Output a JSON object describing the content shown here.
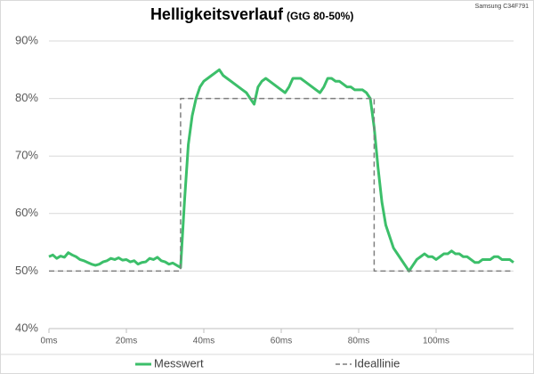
{
  "chart_data": {
    "type": "line",
    "title": "Helligkeitsverlauf",
    "subtitle": "(GtG 80-50%)",
    "annotation": "Samsung C34F791",
    "xlim": [
      0,
      120
    ],
    "ylim": [
      40,
      90
    ],
    "xticks": [
      {
        "value": 0,
        "label": "0ms"
      },
      {
        "value": 20,
        "label": "20ms"
      },
      {
        "value": 40,
        "label": "40ms"
      },
      {
        "value": 60,
        "label": "60ms"
      },
      {
        "value": 80,
        "label": "80ms"
      },
      {
        "value": 100,
        "label": "100ms"
      }
    ],
    "yticks": [
      {
        "value": 40,
        "label": "40%"
      },
      {
        "value": 50,
        "label": "50%"
      },
      {
        "value": 60,
        "label": "60%"
      },
      {
        "value": 70,
        "label": "70%"
      },
      {
        "value": 80,
        "label": "80%"
      },
      {
        "value": 90,
        "label": "90%"
      }
    ],
    "grid": true,
    "legend": "bottom",
    "series": [
      {
        "name": "Messwert",
        "color": "#3cbf6a",
        "dash": false,
        "x": [
          0,
          1,
          2,
          3,
          4,
          5,
          6,
          7,
          8,
          9,
          10,
          11,
          12,
          13,
          14,
          15,
          16,
          17,
          18,
          19,
          20,
          21,
          22,
          23,
          24,
          25,
          26,
          27,
          28,
          29,
          30,
          31,
          32,
          33,
          34,
          35,
          36,
          37,
          38,
          39,
          40,
          41,
          42,
          43,
          44,
          45,
          46,
          47,
          48,
          49,
          50,
          51,
          52,
          53,
          54,
          55,
          56,
          57,
          58,
          59,
          60,
          61,
          62,
          63,
          64,
          65,
          66,
          67,
          68,
          69,
          70,
          71,
          72,
          73,
          74,
          75,
          76,
          77,
          78,
          79,
          80,
          81,
          82,
          83,
          84,
          85,
          86,
          87,
          88,
          89,
          90,
          91,
          92,
          93,
          94,
          95,
          96,
          97,
          98,
          99,
          100,
          101,
          102,
          103,
          104,
          105,
          106,
          107,
          108,
          109,
          110,
          111,
          112,
          113,
          114,
          115,
          116,
          117,
          118,
          119,
          120
        ],
        "values": [
          52.5,
          52.8,
          52.2,
          52.6,
          52.4,
          53.2,
          52.8,
          52.5,
          52.0,
          51.8,
          51.5,
          51.2,
          51.0,
          51.2,
          51.6,
          51.8,
          52.2,
          52.0,
          52.3,
          51.9,
          52.0,
          51.6,
          51.8,
          51.2,
          51.5,
          51.6,
          52.2,
          52.0,
          52.4,
          51.8,
          51.6,
          51.2,
          51.4,
          51.0,
          50.6,
          62,
          72,
          77,
          80,
          82,
          83,
          83.5,
          84,
          84.5,
          85,
          84,
          83.5,
          83,
          82.5,
          82,
          81.5,
          81,
          80,
          79,
          82,
          83,
          83.5,
          83,
          82.5,
          82,
          81.5,
          81,
          82,
          83.5,
          83.5,
          83.5,
          83,
          82.5,
          82,
          81.5,
          81,
          82,
          83.5,
          83.5,
          83,
          83,
          82.5,
          82,
          82,
          81.5,
          81.5,
          81.5,
          81,
          80,
          75,
          68,
          62,
          58,
          56,
          54,
          53,
          52,
          51,
          50,
          51,
          52,
          52.5,
          53,
          52.5,
          52.5,
          52,
          52.5,
          53,
          53,
          53.5,
          53,
          53,
          52.5,
          52.5,
          52,
          51.5,
          51.5,
          52,
          52,
          52,
          52.5,
          52.5,
          52,
          52,
          52,
          51.5
        ]
      },
      {
        "name": "Ideallinie",
        "color": "#7f7f7f",
        "dash": true,
        "x": [
          0,
          34,
          34,
          84,
          84,
          120
        ],
        "values": [
          50,
          50,
          80,
          80,
          50,
          50
        ]
      }
    ]
  }
}
